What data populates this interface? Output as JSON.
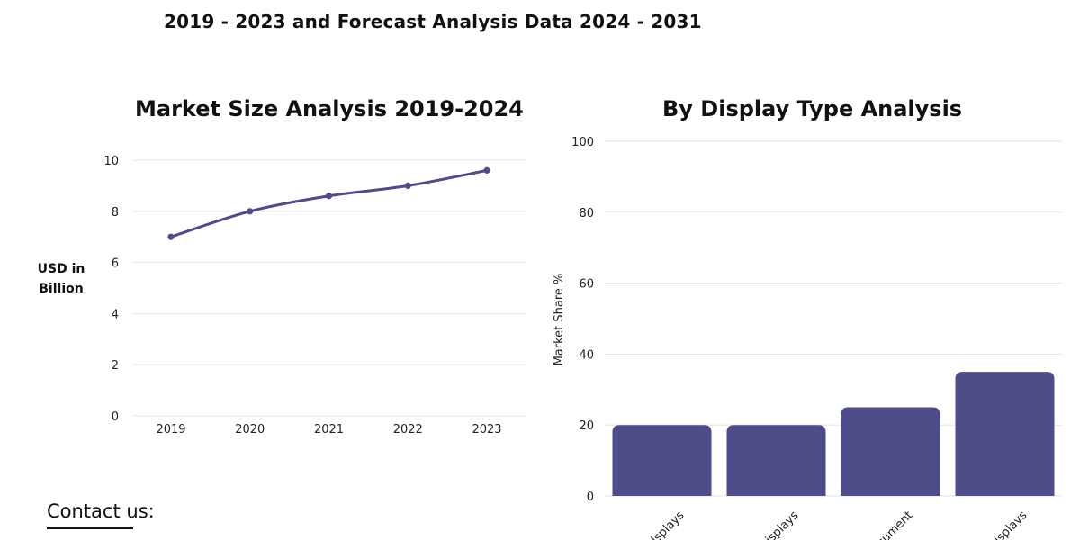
{
  "header": {
    "title": "2019 - 2023 and Forecast Analysis Data 2024 - 2031"
  },
  "contact": {
    "label": "Contact us:"
  },
  "chart_data": [
    {
      "type": "line",
      "title": "Market Size Analysis 2019-2024",
      "xlabel": "",
      "ylabel": "USD in Billion",
      "ylim": [
        0,
        10
      ],
      "yticks": [
        0,
        2,
        4,
        6,
        8,
        10
      ],
      "x": [
        "2019",
        "2020",
        "2021",
        "2022",
        "2023"
      ],
      "values": [
        7.0,
        8.0,
        8.6,
        9.0,
        9.6
      ],
      "grid": true,
      "color": "#4e4d8a"
    },
    {
      "type": "bar",
      "title": "By Display Type Analysis",
      "xlabel": "",
      "ylabel": "Market Share %",
      "ylim": [
        0,
        100
      ],
      "yticks": [
        0,
        20,
        40,
        60,
        80,
        100
      ],
      "categories": [
        "Displays",
        "Displays",
        "ocument",
        "Displays"
      ],
      "values": [
        20,
        20,
        25,
        35
      ],
      "grid": true,
      "color": "#4e4d8a"
    }
  ]
}
